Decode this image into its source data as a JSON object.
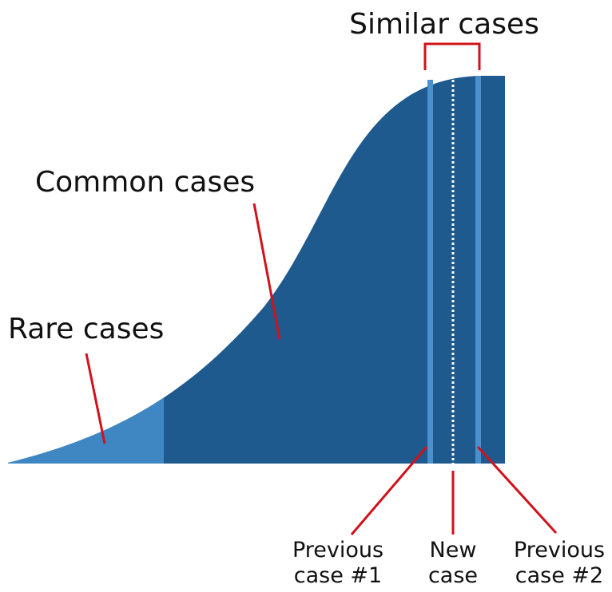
{
  "labels": {
    "similar": "Similar cases",
    "common": "Common cases",
    "rare": "Rare cases",
    "previous1": [
      "Previous",
      "case #1"
    ],
    "new": [
      "New",
      "case"
    ],
    "previous2": [
      "Previous",
      "case #2"
    ]
  }
}
